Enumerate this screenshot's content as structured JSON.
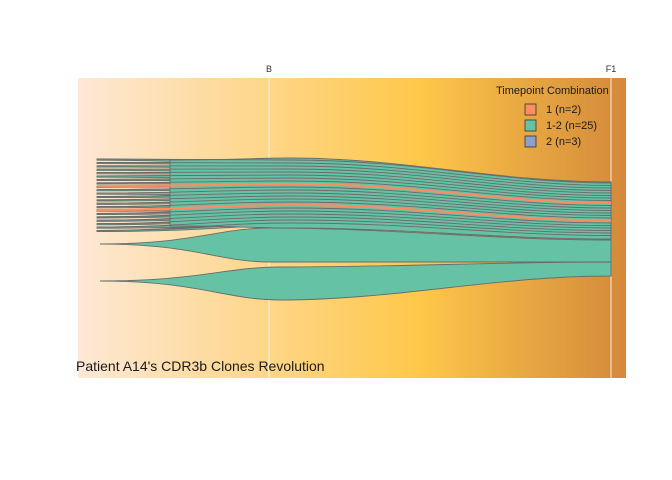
{
  "chart_data": {
    "type": "area",
    "title": "Patient A14's CDR3b Clones Revolution",
    "x": [
      "B",
      "F1"
    ],
    "legend": {
      "title": "Timepoint Combination",
      "placement": "top-right",
      "entries": [
        {
          "label": "1 (n=2)",
          "color": "#fc8d62"
        },
        {
          "label": "1-2 (n=25)",
          "color": "#66c2a5"
        },
        {
          "label": "2 (n=3)",
          "color": "#8da0cb"
        }
      ]
    },
    "series_groups": [
      {
        "group": "1",
        "count": 2,
        "color": "#fc8d62"
      },
      {
        "group": "1-2",
        "count": 25,
        "color": "#66c2a5"
      },
      {
        "group": "2",
        "count": 3,
        "color": "#8da0cb"
      }
    ],
    "background_gradient": [
      "#fde8d6",
      "#fec84a",
      "#d3893a"
    ]
  }
}
